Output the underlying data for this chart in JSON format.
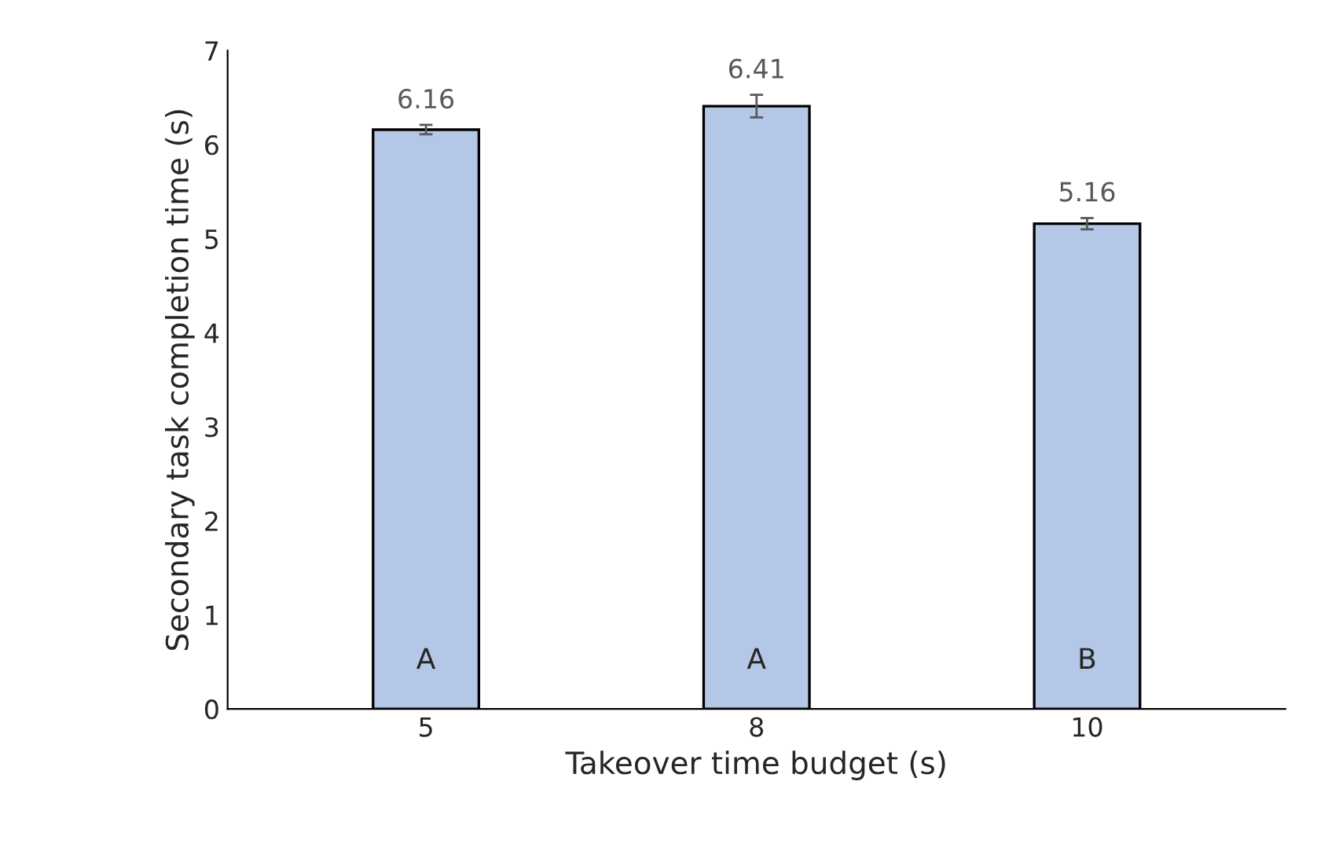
{
  "chart_data": {
    "type": "bar",
    "xlabel": "Takeover time budget (s)",
    "ylabel": "Secondary task completion time (s)",
    "categories": [
      "5",
      "8",
      "10"
    ],
    "values": [
      6.16,
      6.41,
      5.16
    ],
    "errors": [
      0.05,
      0.12,
      0.06
    ],
    "color": "#b4c7e7",
    "data_labels": true,
    "ylim": [
      0,
      7
    ],
    "yticks": [
      0,
      1,
      2,
      3,
      4,
      5,
      6,
      7
    ],
    "grid": false,
    "annotations": [
      "A",
      "A",
      "B"
    ]
  }
}
